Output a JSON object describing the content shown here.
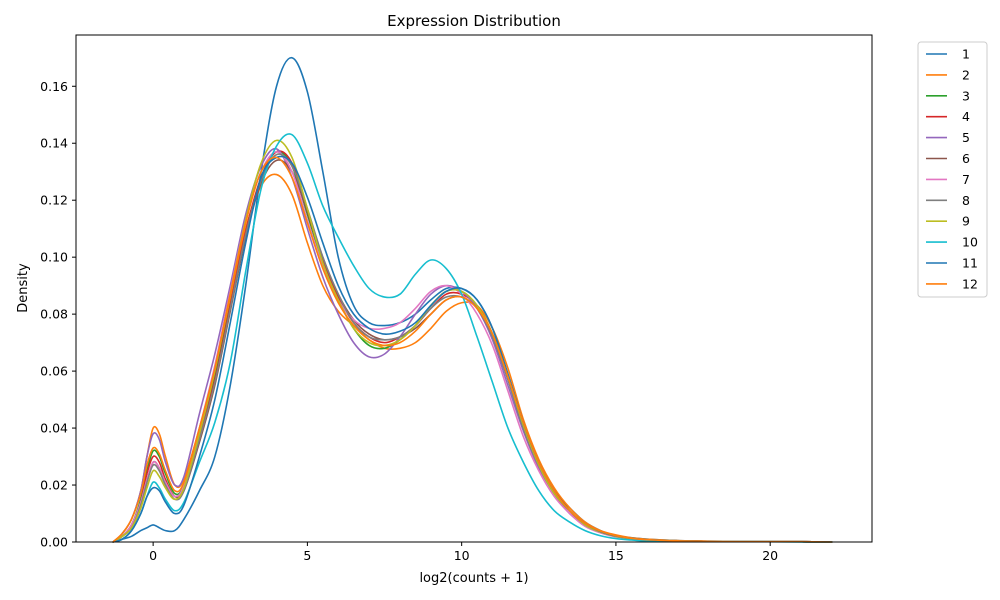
{
  "chart_data": {
    "type": "line",
    "title": "Expression Distribution",
    "xlabel": "log2(counts + 1)",
    "ylabel": "Density",
    "xlim": [
      -2.5,
      23.3
    ],
    "ylim": [
      0,
      0.178
    ],
    "x_ticks": [
      0,
      5,
      10,
      15,
      20
    ],
    "x_tick_labels": [
      "0",
      "5",
      "10",
      "15",
      "20"
    ],
    "y_ticks": [
      0,
      0.02,
      0.04,
      0.06,
      0.08,
      0.1,
      0.12,
      0.14,
      0.16
    ],
    "y_tick_labels": [
      "0.00",
      "0.02",
      "0.04",
      "0.06",
      "0.08",
      "0.10",
      "0.12",
      "0.14",
      "0.16"
    ],
    "grid": false,
    "legend_position": "outside-right-top",
    "x": [
      -1.3,
      -1,
      -0.7,
      -0.4,
      -0.2,
      0,
      0.2,
      0.4,
      0.7,
      1,
      1.5,
      2,
      2.5,
      3,
      3.5,
      4,
      4.5,
      5,
      5.5,
      6,
      6.5,
      7,
      7.5,
      8,
      8.5,
      9,
      9.5,
      10,
      10.5,
      11,
      11.5,
      12,
      12.5,
      13,
      13.5,
      14,
      14.5,
      15,
      15.5,
      16,
      17,
      18,
      19,
      20,
      21,
      22
    ],
    "series": [
      {
        "name": "1",
        "color": "#1f77b4",
        "values": [
          0,
          0.001,
          0.002,
          0.004,
          0.005,
          0.006,
          0.005,
          0.004,
          0.004,
          0.008,
          0.018,
          0.03,
          0.055,
          0.09,
          0.13,
          0.16,
          0.17,
          0.158,
          0.13,
          0.1,
          0.083,
          0.077,
          0.076,
          0.077,
          0.08,
          0.085,
          0.089,
          0.089,
          0.085,
          0.075,
          0.058,
          0.04,
          0.027,
          0.018,
          0.012,
          0.007,
          0.004,
          0.002,
          0.0015,
          0.001,
          0.0005,
          0.0003,
          0.0002,
          0.0001,
          0.0001,
          0
        ]
      },
      {
        "name": "2",
        "color": "#ff7f0e",
        "values": [
          0,
          0.003,
          0.008,
          0.018,
          0.03,
          0.04,
          0.038,
          0.03,
          0.02,
          0.022,
          0.04,
          0.06,
          0.085,
          0.11,
          0.125,
          0.129,
          0.122,
          0.105,
          0.09,
          0.081,
          0.076,
          0.071,
          0.068,
          0.068,
          0.07,
          0.075,
          0.081,
          0.084,
          0.083,
          0.075,
          0.061,
          0.043,
          0.029,
          0.019,
          0.012,
          0.007,
          0.004,
          0.0025,
          0.0015,
          0.001,
          0.0005,
          0.0003,
          0.0002,
          0.0001,
          0.0001,
          0
        ]
      },
      {
        "name": "3",
        "color": "#2ca02c",
        "values": [
          0,
          0.002,
          0.006,
          0.015,
          0.025,
          0.032,
          0.03,
          0.024,
          0.017,
          0.02,
          0.038,
          0.058,
          0.083,
          0.108,
          0.128,
          0.137,
          0.132,
          0.115,
          0.098,
          0.085,
          0.075,
          0.069,
          0.068,
          0.071,
          0.076,
          0.083,
          0.088,
          0.088,
          0.083,
          0.073,
          0.058,
          0.041,
          0.027,
          0.018,
          0.011,
          0.006,
          0.0035,
          0.002,
          0.0012,
          0.0008,
          0.0004,
          0.0002,
          0.0001,
          0.0001,
          0.0001,
          0
        ]
      },
      {
        "name": "4",
        "color": "#d62728",
        "values": [
          0,
          0.002,
          0.006,
          0.014,
          0.024,
          0.03,
          0.028,
          0.022,
          0.016,
          0.019,
          0.037,
          0.057,
          0.083,
          0.109,
          0.128,
          0.137,
          0.133,
          0.116,
          0.099,
          0.086,
          0.077,
          0.072,
          0.07,
          0.072,
          0.076,
          0.082,
          0.087,
          0.087,
          0.083,
          0.073,
          0.058,
          0.041,
          0.027,
          0.018,
          0.011,
          0.006,
          0.0035,
          0.002,
          0.0012,
          0.0008,
          0.0004,
          0.0002,
          0.0001,
          0.0001,
          0.0001,
          0
        ]
      },
      {
        "name": "5",
        "color": "#9467bd",
        "values": [
          0,
          0.003,
          0.008,
          0.018,
          0.03,
          0.038,
          0.036,
          0.028,
          0.02,
          0.023,
          0.045,
          0.066,
          0.09,
          0.115,
          0.132,
          0.138,
          0.128,
          0.11,
          0.093,
          0.08,
          0.07,
          0.065,
          0.066,
          0.072,
          0.08,
          0.087,
          0.09,
          0.088,
          0.082,
          0.071,
          0.055,
          0.039,
          0.026,
          0.017,
          0.01,
          0.006,
          0.0035,
          0.002,
          0.0012,
          0.0008,
          0.0004,
          0.0002,
          0.0001,
          0.0001,
          0.0001,
          0
        ]
      },
      {
        "name": "6",
        "color": "#8c564b",
        "values": [
          0,
          0.002,
          0.005,
          0.012,
          0.021,
          0.028,
          0.026,
          0.021,
          0.016,
          0.018,
          0.035,
          0.055,
          0.081,
          0.107,
          0.126,
          0.134,
          0.13,
          0.116,
          0.1,
          0.087,
          0.078,
          0.073,
          0.071,
          0.072,
          0.075,
          0.08,
          0.085,
          0.086,
          0.082,
          0.072,
          0.057,
          0.04,
          0.027,
          0.017,
          0.011,
          0.006,
          0.0035,
          0.002,
          0.0012,
          0.0008,
          0.0004,
          0.0002,
          0.0001,
          0.0001,
          0.0001,
          0
        ]
      },
      {
        "name": "7",
        "color": "#e377c2",
        "values": [
          0,
          0.002,
          0.006,
          0.014,
          0.022,
          0.028,
          0.026,
          0.021,
          0.016,
          0.02,
          0.04,
          0.062,
          0.088,
          0.113,
          0.13,
          0.137,
          0.13,
          0.113,
          0.097,
          0.085,
          0.078,
          0.075,
          0.075,
          0.077,
          0.082,
          0.088,
          0.09,
          0.087,
          0.08,
          0.069,
          0.053,
          0.037,
          0.025,
          0.016,
          0.01,
          0.0055,
          0.0032,
          0.0018,
          0.0011,
          0.0007,
          0.0003,
          0.0002,
          0.0001,
          0.0001,
          0.0001,
          0
        ]
      },
      {
        "name": "8",
        "color": "#7f7f7f",
        "values": [
          0,
          0.002,
          0.005,
          0.013,
          0.021,
          0.027,
          0.025,
          0.02,
          0.015,
          0.018,
          0.036,
          0.056,
          0.082,
          0.108,
          0.127,
          0.136,
          0.132,
          0.117,
          0.1,
          0.087,
          0.077,
          0.072,
          0.071,
          0.072,
          0.076,
          0.082,
          0.086,
          0.086,
          0.082,
          0.072,
          0.057,
          0.04,
          0.027,
          0.017,
          0.011,
          0.006,
          0.0035,
          0.002,
          0.0012,
          0.0008,
          0.0004,
          0.0002,
          0.0001,
          0.0001,
          0.0001,
          0
        ]
      },
      {
        "name": "9",
        "color": "#bcbd22",
        "values": [
          0,
          0.002,
          0.005,
          0.012,
          0.019,
          0.025,
          0.023,
          0.019,
          0.015,
          0.019,
          0.038,
          0.06,
          0.087,
          0.113,
          0.133,
          0.141,
          0.135,
          0.117,
          0.098,
          0.085,
          0.075,
          0.07,
          0.069,
          0.071,
          0.076,
          0.083,
          0.088,
          0.088,
          0.083,
          0.073,
          0.058,
          0.041,
          0.027,
          0.017,
          0.011,
          0.006,
          0.0035,
          0.002,
          0.0012,
          0.0008,
          0.0004,
          0.0002,
          0.0001,
          0.0001,
          0.0001,
          0
        ]
      },
      {
        "name": "10",
        "color": "#17becf",
        "values": [
          0,
          0.001,
          0.004,
          0.01,
          0.016,
          0.021,
          0.019,
          0.015,
          0.011,
          0.014,
          0.028,
          0.042,
          0.063,
          0.095,
          0.124,
          0.139,
          0.143,
          0.133,
          0.118,
          0.107,
          0.097,
          0.089,
          0.086,
          0.087,
          0.094,
          0.099,
          0.096,
          0.087,
          0.072,
          0.056,
          0.04,
          0.028,
          0.018,
          0.011,
          0.007,
          0.004,
          0.0022,
          0.0012,
          0.0007,
          0.0004,
          0.0002,
          0.0001,
          0.0001,
          0.0001,
          0,
          0
        ]
      },
      {
        "name": "11",
        "color": "#1f77b4",
        "values": [
          0,
          0.001,
          0.004,
          0.01,
          0.016,
          0.019,
          0.018,
          0.014,
          0.01,
          0.013,
          0.03,
          0.05,
          0.077,
          0.105,
          0.128,
          0.135,
          0.133,
          0.121,
          0.105,
          0.09,
          0.08,
          0.075,
          0.073,
          0.074,
          0.077,
          0.083,
          0.088,
          0.089,
          0.085,
          0.075,
          0.059,
          0.042,
          0.028,
          0.018,
          0.011,
          0.0065,
          0.0037,
          0.0021,
          0.0013,
          0.0008,
          0.0004,
          0.0002,
          0.0001,
          0.0001,
          0.0001,
          0
        ]
      },
      {
        "name": "12",
        "color": "#ff7f0e",
        "values": [
          0,
          0.003,
          0.008,
          0.017,
          0.027,
          0.033,
          0.031,
          0.025,
          0.018,
          0.021,
          0.04,
          0.061,
          0.087,
          0.112,
          0.13,
          0.135,
          0.128,
          0.112,
          0.096,
          0.084,
          0.076,
          0.071,
          0.069,
          0.07,
          0.074,
          0.08,
          0.085,
          0.086,
          0.082,
          0.073,
          0.058,
          0.042,
          0.028,
          0.018,
          0.011,
          0.0065,
          0.0038,
          0.0022,
          0.0013,
          0.0008,
          0.0004,
          0.0002,
          0.0001,
          0.0001,
          0.0001,
          0
        ]
      }
    ]
  }
}
